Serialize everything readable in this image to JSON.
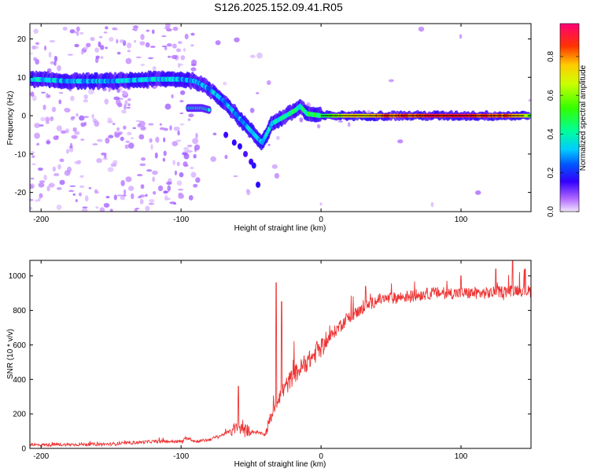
{
  "title": "S126.2025.152.09.41.R05",
  "chart_data": [
    {
      "type": "heatmap",
      "xlabel": "Height of straight line (km)",
      "ylabel": "Frequency (Hz)",
      "xlim": [
        -208,
        150
      ],
      "ylim": [
        -25,
        24
      ],
      "xticks": [
        -200,
        -100,
        0,
        100
      ],
      "yticks": [
        -20,
        -10,
        0,
        10,
        20
      ],
      "colorbar": {
        "label": "Normalized spectral amplitude",
        "range": [
          0,
          0.97
        ],
        "ticks": [
          0.0,
          0.2,
          0.4,
          0.6,
          0.8
        ]
      },
      "ridge": {
        "x": [
          -205,
          -180,
          -150,
          -120,
          -100,
          -90,
          -80,
          -70,
          -60,
          -50,
          -45,
          -42,
          -35,
          -25,
          -18,
          -15,
          -10,
          0,
          20,
          50,
          100,
          140,
          150
        ],
        "y": [
          9.5,
          9,
          9,
          9.5,
          9.5,
          9,
          7,
          4,
          0,
          -4,
          -6,
          -7,
          -2,
          0,
          1.5,
          2.5,
          0.5,
          0,
          0,
          0,
          0,
          0,
          0
        ],
        "amplitude": [
          0.35,
          0.3,
          0.3,
          0.35,
          0.3,
          0.3,
          0.3,
          0.3,
          0.3,
          0.3,
          0.3,
          0.35,
          0.35,
          0.4,
          0.45,
          0.4,
          0.45,
          0.5,
          0.7,
          0.85,
          0.95,
          0.8,
          0.6
        ]
      },
      "branch": {
        "x": [
          -95,
          -90,
          -85,
          -80
        ],
        "y": [
          2,
          2,
          2,
          1.5
        ]
      },
      "tail": {
        "x": [
          -68,
          -62,
          -58,
          -54,
          -50,
          -48,
          -45
        ],
        "y": [
          -5,
          -7,
          -8,
          -10,
          -12,
          -13,
          -18
        ]
      }
    },
    {
      "type": "line",
      "xlabel": "Height of straight line (km)",
      "ylabel": "SNR (10 * v/v)",
      "xlim": [
        -208,
        150
      ],
      "ylim": [
        0,
        1090
      ],
      "xticks": [
        -200,
        -100,
        0,
        100
      ],
      "yticks": [
        0,
        200,
        400,
        600,
        800,
        1000
      ],
      "color": "#ee3333",
      "trend": {
        "x": [
          -208,
          -150,
          -120,
          -100,
          -95,
          -90,
          -80,
          -70,
          -60,
          -50,
          -40,
          -35,
          -30,
          -20,
          -10,
          0,
          10,
          20,
          40,
          60,
          80,
          100,
          120,
          140,
          150
        ],
        "y": [
          20,
          25,
          40,
          40,
          60,
          40,
          50,
          80,
          120,
          100,
          80,
          200,
          300,
          420,
          500,
          580,
          680,
          760,
          860,
          880,
          900,
          900,
          900,
          920,
          910
        ]
      },
      "spikes": {
        "x": [
          -59,
          -32,
          -28,
          -3,
          14,
          18,
          28,
          32,
          45,
          100,
          125,
          137,
          146
        ],
        "y": [
          360,
          960,
          850,
          620,
          740,
          780,
          820,
          940,
          850,
          1000,
          1040,
          1090,
          1040
        ]
      }
    }
  ]
}
